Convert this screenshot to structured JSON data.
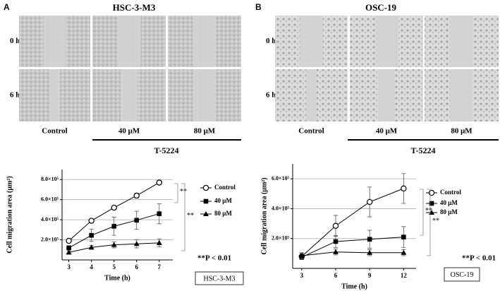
{
  "panels": [
    {
      "label": "A",
      "title": "HSC-3-M3",
      "rows": [
        "0 h",
        "6 h"
      ],
      "columns": [
        "Control",
        "40 μM",
        "80 μM"
      ],
      "treatment": "T-5224"
    },
    {
      "label": "B",
      "title": "OSC-19",
      "rows": [
        "0 h",
        "6 h"
      ],
      "columns": [
        "Control",
        "40 μM",
        "80 μM"
      ],
      "treatment": "T-5224"
    }
  ],
  "chart_data": [
    {
      "type": "line",
      "xlabel": "Time (h)",
      "ylabel": "Cell migration area (μm²)",
      "x": [
        3,
        4,
        5,
        6,
        7
      ],
      "xlim": [
        2.7,
        7.6
      ],
      "xticks": [
        3,
        4,
        5,
        6,
        7
      ],
      "ylim": [
        0,
        900000
      ],
      "yticks": [
        {
          "value": 200000,
          "label": "2.0×10⁵"
        },
        {
          "value": 400000,
          "label": "4.0×10⁵"
        },
        {
          "value": 600000,
          "label": "6.0×10⁵"
        },
        {
          "value": 800000,
          "label": "8.0×10⁵"
        }
      ],
      "grid": true,
      "series": [
        {
          "name": "Control",
          "color": "#000000",
          "marker": "open-circle",
          "values": [
            190000,
            390000,
            520000,
            640000,
            770000
          ],
          "errors": [
            10000,
            20000,
            20000,
            25000,
            20000
          ]
        },
        {
          "name": "40 μM",
          "color": "#000000",
          "marker": "square",
          "values": [
            120000,
            245000,
            335000,
            395000,
            460000
          ],
          "errors": [
            20000,
            60000,
            90000,
            90000,
            100000
          ]
        },
        {
          "name": "80 μM",
          "color": "#000000",
          "marker": "triangle",
          "values": [
            75000,
            125000,
            150000,
            160000,
            170000
          ],
          "errors": [
            15000,
            20000,
            30000,
            40000,
            40000
          ]
        }
      ],
      "significance": [
        "**",
        "**"
      ],
      "p_note": "**P < 0.01",
      "box_label": "HSC-3-M3"
    },
    {
      "type": "line",
      "xlabel": "Time (h)",
      "ylabel": "Cell migration area (μm²)",
      "x": [
        3,
        6,
        9,
        12
      ],
      "xlim": [
        2.2,
        13.1
      ],
      "xticks": [
        3,
        6,
        9,
        12
      ],
      "ylim": [
        0,
        700000
      ],
      "yticks": [
        {
          "value": 200000,
          "label": "2.0×10⁵"
        },
        {
          "value": 400000,
          "label": "4.0×10⁵"
        },
        {
          "value": 600000,
          "label": "6.0×10⁵"
        }
      ],
      "grid": true,
      "series": [
        {
          "name": "Control",
          "color": "#000000",
          "marker": "open-circle",
          "values": [
            80000,
            285000,
            445000,
            535000
          ],
          "errors": [
            20000,
            70000,
            100000,
            100000
          ]
        },
        {
          "name": "40 μM",
          "color": "#000000",
          "marker": "square",
          "values": [
            75000,
            180000,
            195000,
            210000
          ],
          "errors": [
            15000,
            40000,
            60000,
            70000
          ]
        },
        {
          "name": "80 μM",
          "color": "#000000",
          "marker": "triangle",
          "values": [
            85000,
            110000,
            105000,
            105000
          ],
          "errors": [
            20000,
            20000,
            20000,
            20000
          ]
        }
      ],
      "significance": [
        "**",
        "**"
      ],
      "p_note": "**P < 0.01",
      "box_label": "OSC-19"
    }
  ]
}
